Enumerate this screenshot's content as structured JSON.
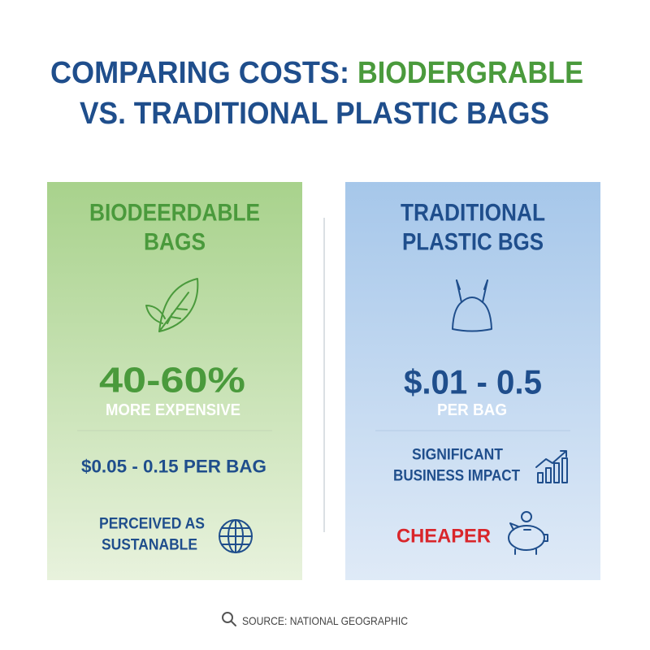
{
  "title": {
    "line1_lead": "COMPARING COSTS:",
    "line1_highlight": "BIODERGRABLE",
    "line2": "VS. TRADITIONAL PLASTIC BAGS"
  },
  "panels": [
    {
      "heading": [
        "BIODEERDABLE",
        "BAGS"
      ],
      "figure": "40-60%",
      "figure_caption": "MORE EXPENSIVE",
      "price": "$0.05 - 0.15 PER BAG",
      "note": [
        "PERCEIVED AS",
        "SUSTANABLE"
      ]
    },
    {
      "heading": [
        "TRADITIONAL",
        "PLASTIC BGS"
      ],
      "figure": "$.01 - 0.5",
      "figure_caption": "PER BAG",
      "note": [
        "SIGNIFICANT",
        "BUSINESS IMPACT"
      ],
      "highlight": "CHEAPER"
    }
  ],
  "source": "SOURCE: NATIONAL GEOGRAPHIC"
}
